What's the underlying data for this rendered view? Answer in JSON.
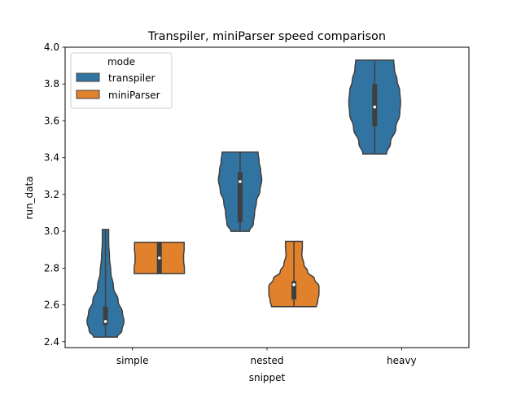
{
  "chart_data": {
    "type": "violin",
    "title": "Transpiler, miniParser speed comparison",
    "xlabel": "snippet",
    "ylabel": "run_data",
    "categories": [
      "simple",
      "nested",
      "heavy"
    ],
    "ylim": [
      2.4,
      4.0
    ],
    "yticks": [
      "2.4",
      "2.6",
      "2.8",
      "3.0",
      "3.2",
      "3.4",
      "3.6",
      "3.8",
      "4.0"
    ],
    "legend": {
      "title": "mode",
      "placement": "top-left"
    },
    "series": [
      {
        "name": "transpiler",
        "color": "#3274a1",
        "violins": [
          {
            "category": "simple",
            "min": 2.425,
            "max": 3.01,
            "q1": 2.49,
            "median": 2.51,
            "q3": 2.59,
            "profile": [
              [
                2.425,
                0.45
              ],
              [
                2.46,
                0.62
              ],
              [
                2.51,
                0.7
              ],
              [
                2.56,
                0.64
              ],
              [
                2.62,
                0.48
              ],
              [
                2.7,
                0.3
              ],
              [
                2.78,
                0.2
              ],
              [
                2.86,
                0.15
              ],
              [
                2.94,
                0.12
              ],
              [
                3.01,
                0.12
              ]
            ]
          },
          {
            "category": "nested",
            "min": 3.0,
            "max": 3.43,
            "q1": 3.05,
            "median": 3.27,
            "q3": 3.32,
            "profile": [
              [
                3.0,
                0.35
              ],
              [
                3.04,
                0.5
              ],
              [
                3.1,
                0.55
              ],
              [
                3.16,
                0.62
              ],
              [
                3.22,
                0.75
              ],
              [
                3.28,
                0.82
              ],
              [
                3.33,
                0.78
              ],
              [
                3.38,
                0.72
              ],
              [
                3.43,
                0.68
              ]
            ]
          },
          {
            "category": "heavy",
            "min": 3.42,
            "max": 3.93,
            "q1": 3.57,
            "median": 3.675,
            "q3": 3.8,
            "profile": [
              [
                3.42,
                0.45
              ],
              [
                3.48,
                0.6
              ],
              [
                3.56,
                0.8
              ],
              [
                3.64,
                0.95
              ],
              [
                3.7,
                0.98
              ],
              [
                3.76,
                0.95
              ],
              [
                3.82,
                0.85
              ],
              [
                3.88,
                0.75
              ],
              [
                3.93,
                0.72
              ]
            ]
          }
        ]
      },
      {
        "name": "miniParser",
        "color": "#e1812c",
        "violins": [
          {
            "category": "simple",
            "min": 2.77,
            "max": 2.94,
            "q1": 2.77,
            "median": 2.855,
            "q3": 2.94,
            "profile": [
              [
                2.77,
                0.95
              ],
              [
                2.8,
                0.95
              ],
              [
                2.84,
                0.92
              ],
              [
                2.87,
                0.92
              ],
              [
                2.9,
                0.94
              ],
              [
                2.94,
                0.94
              ]
            ]
          },
          {
            "category": "nested",
            "min": 2.59,
            "max": 2.945,
            "q1": 2.63,
            "median": 2.71,
            "q3": 2.73,
            "profile": [
              [
                2.59,
                0.85
              ],
              [
                2.62,
                0.9
              ],
              [
                2.66,
                0.95
              ],
              [
                2.7,
                0.95
              ],
              [
                2.74,
                0.78
              ],
              [
                2.78,
                0.52
              ],
              [
                2.82,
                0.38
              ],
              [
                2.87,
                0.3
              ],
              [
                2.92,
                0.32
              ],
              [
                2.945,
                0.32
              ]
            ]
          }
        ]
      }
    ]
  }
}
